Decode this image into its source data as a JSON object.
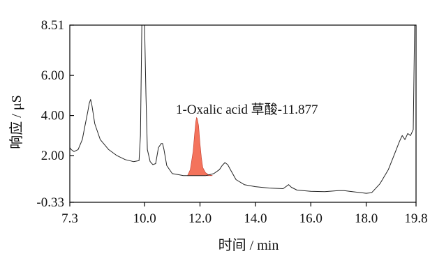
{
  "chart_data": {
    "type": "line",
    "title": "",
    "xlabel": "时间 / min",
    "ylabel": "响应 / μS",
    "xlim": [
      7.3,
      19.8
    ],
    "ylim": [
      -0.33,
      8.51
    ],
    "x_ticks": [
      "7.3",
      "10.0",
      "12.0",
      "14.0",
      "16.0",
      "18.0",
      "19.8"
    ],
    "x_tick_values": [
      7.3,
      10.0,
      12.0,
      14.0,
      16.0,
      18.0,
      19.8
    ],
    "y_ticks": [
      "8.51",
      "6.00",
      "4.00",
      "2.00",
      "-0.33"
    ],
    "y_tick_values": [
      8.51,
      6.0,
      4.0,
      2.0,
      -0.33
    ],
    "grid": false,
    "series": [
      {
        "x": [
          7.3,
          7.35,
          7.45,
          7.6,
          7.75,
          7.85,
          7.95,
          8.0,
          8.05,
          8.1,
          8.2,
          8.4,
          8.7,
          9.0,
          9.3,
          9.6,
          9.8,
          9.85,
          9.9,
          9.95,
          10.0,
          10.05,
          10.1,
          10.2,
          10.3,
          10.4,
          10.5,
          10.6,
          10.65,
          10.7,
          10.8,
          11.0,
          11.2,
          11.4,
          11.6,
          11.8,
          12.2,
          12.5,
          12.7,
          12.8,
          12.9,
          13.0,
          13.1,
          13.3,
          13.6,
          14.0,
          14.5,
          15.0,
          15.1,
          15.2,
          15.3,
          15.5,
          16.0,
          16.5,
          17.0,
          17.2,
          17.5,
          18.0,
          18.2,
          18.5,
          18.8,
          19.0,
          19.2,
          19.3,
          19.4,
          19.5,
          19.6,
          19.7,
          19.75,
          19.8
        ],
        "y": [
          2.4,
          2.3,
          2.2,
          2.3,
          2.8,
          3.5,
          4.2,
          4.6,
          4.8,
          4.5,
          3.6,
          2.8,
          2.3,
          2.0,
          1.8,
          1.7,
          1.75,
          3.0,
          8.51,
          8.51,
          8.51,
          5.0,
          2.3,
          1.7,
          1.55,
          1.6,
          2.4,
          2.6,
          2.6,
          2.3,
          1.5,
          1.1,
          1.05,
          1.0,
          1.0,
          1.0,
          1.0,
          1.1,
          1.3,
          1.5,
          1.65,
          1.55,
          1.3,
          0.8,
          0.55,
          0.45,
          0.38,
          0.35,
          0.45,
          0.55,
          0.42,
          0.28,
          0.22,
          0.2,
          0.25,
          0.25,
          0.2,
          0.12,
          0.15,
          0.6,
          1.3,
          2.0,
          2.7,
          3.0,
          2.8,
          3.1,
          3.0,
          3.3,
          8.51,
          8.51
        ]
      }
    ],
    "highlight_peak": {
      "label": "1-Oxalic acid 草酸-11.877",
      "x": [
        11.55,
        11.65,
        11.75,
        11.8,
        11.85,
        11.877,
        11.9,
        11.95,
        12.0,
        12.05,
        12.1,
        12.2,
        12.3,
        12.45
      ],
      "y": [
        1.0,
        1.3,
        2.2,
        3.0,
        3.7,
        3.9,
        3.85,
        3.5,
        2.6,
        1.9,
        1.4,
        1.15,
        1.05,
        1.0
      ],
      "fill_color": "#f4735c"
    },
    "line_color": "#222222"
  }
}
